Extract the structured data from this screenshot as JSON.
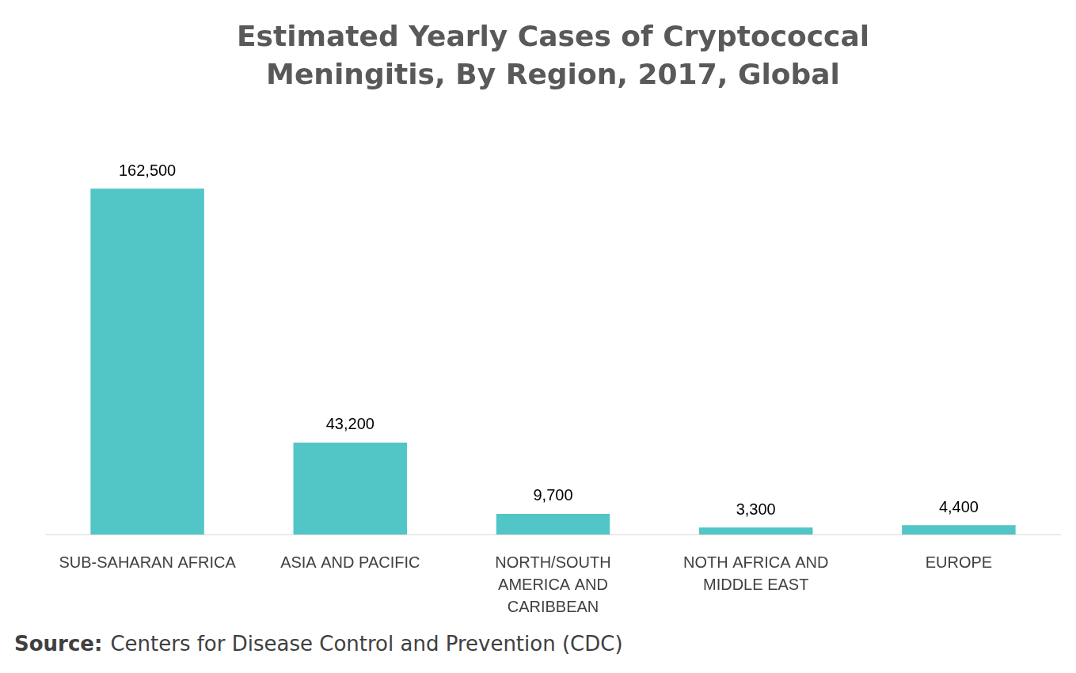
{
  "chart_data": {
    "type": "bar",
    "title": "Estimated Yearly Cases of Cryptococcal Meningitis, By Region, 2017, Global",
    "categories": [
      "SUB-SAHARAN AFRICA",
      "ASIA AND PACIFIC",
      "NORTH/SOUTH AMERICA AND CARIBBEAN",
      "NOTH AFRICA AND MIDDLE EAST",
      "EUROPE"
    ],
    "values": [
      162500,
      43200,
      9700,
      3300,
      4400
    ],
    "value_labels": [
      "162,500",
      "43,200",
      "9,700",
      "3,300",
      "4,400"
    ],
    "data_labels": true,
    "color": "#52c5c7",
    "grid": false,
    "tick_labels": "x",
    "source_label": "Source:",
    "source": "Centers for Disease Control and Prevention (CDC)"
  }
}
